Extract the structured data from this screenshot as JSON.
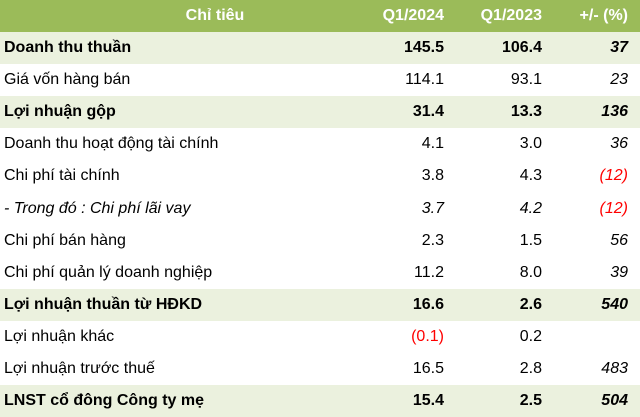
{
  "header": [
    "Chỉ tiêu",
    "Q1/2024",
    "Q1/2023",
    "+/- (%)"
  ],
  "rows": [
    {
      "label": "Doanh thu thuần",
      "q1_2024": "145.5",
      "q1_2023": "106.4",
      "change": "37",
      "bold": true
    },
    {
      "label": "Giá vốn hàng bán",
      "q1_2024": "114.1",
      "q1_2023": "93.1",
      "change": "23"
    },
    {
      "label": "Lợi nhuận gộp",
      "q1_2024": "31.4",
      "q1_2023": "13.3",
      "change": "136",
      "bold": true
    },
    {
      "label": "Doanh thu hoạt động tài chính",
      "q1_2024": "4.1",
      "q1_2023": "3.0",
      "change": "36"
    },
    {
      "label": "Chi phí tài chính",
      "q1_2024": "3.8",
      "q1_2023": "4.3",
      "change": "(12)"
    },
    {
      "label": "- Trong đó : Chi phí lãi vay",
      "q1_2024": "3.7",
      "q1_2023": "4.2",
      "change": "(12)",
      "italic": true
    },
    {
      "label": "Chi phí bán hàng",
      "q1_2024": "2.3",
      "q1_2023": "1.5",
      "change": "56"
    },
    {
      "label": "Chi phí quản lý doanh nghiệp",
      "q1_2024": "11.2",
      "q1_2023": "8.0",
      "change": "39"
    },
    {
      "label": "Lợi nhuận thuần từ HĐKD",
      "q1_2024": "16.6",
      "q1_2023": "2.6",
      "change": "540",
      "bold": true
    },
    {
      "label": "Lợi nhuận khác",
      "q1_2024": "(0.1)",
      "q1_2023": "0.2",
      "change": ""
    },
    {
      "label": "Lợi nhuận trước thuế",
      "q1_2024": "16.5",
      "q1_2023": "2.8",
      "change": "483"
    },
    {
      "label": "LNST cổ đông Công ty mẹ",
      "q1_2024": "15.4",
      "q1_2023": "2.5",
      "change": "504",
      "bold": true
    }
  ],
  "colors": {
    "header_bg": "#9bbb59",
    "highlight_row_bg": "#ebf1de",
    "negative": "#ff0000"
  }
}
